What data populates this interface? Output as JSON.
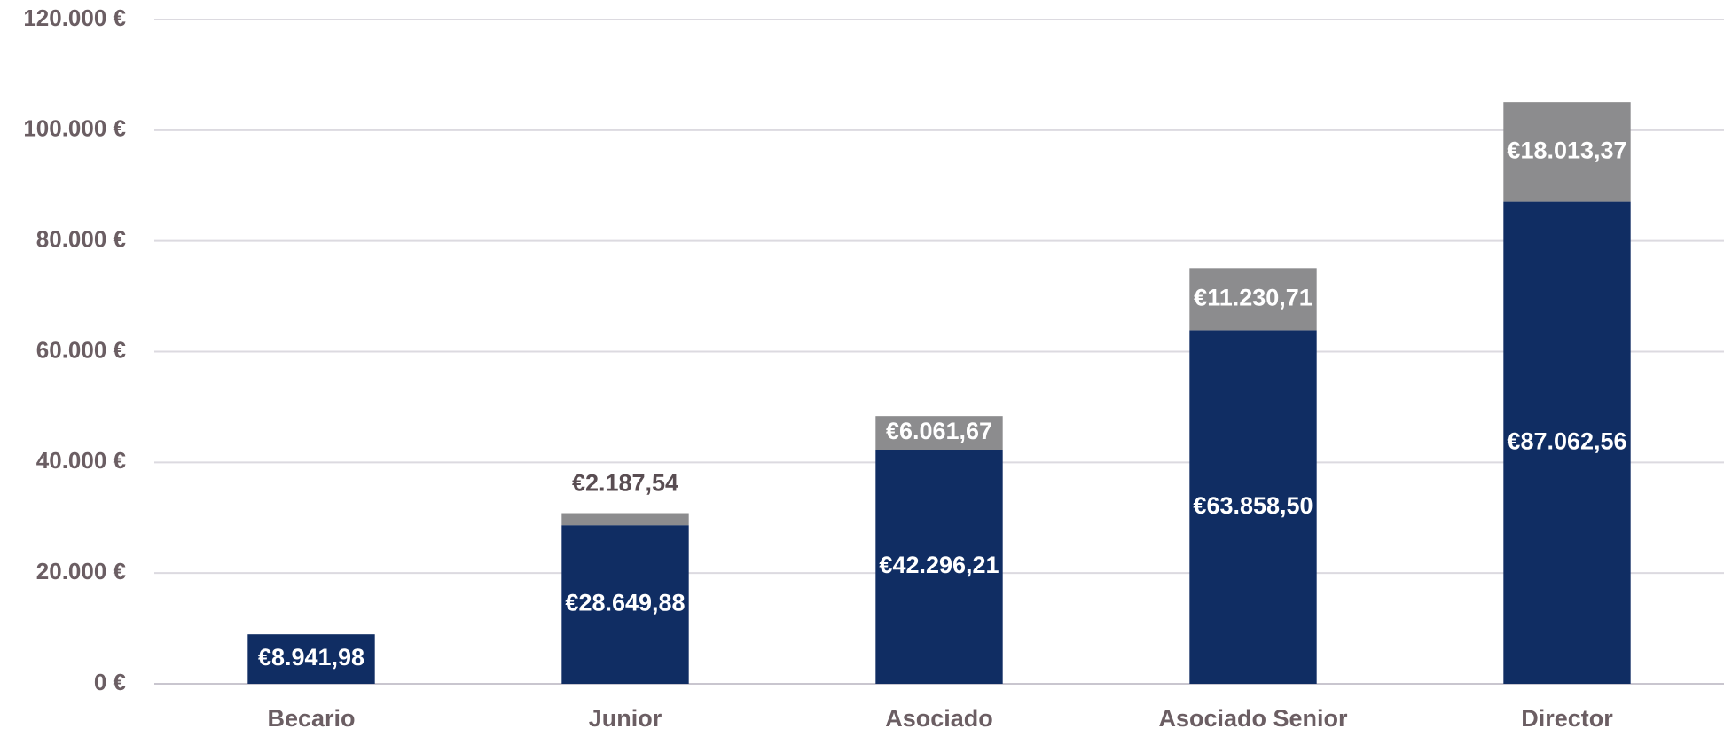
{
  "chart_data": {
    "type": "stacked_bar",
    "categories": [
      "Becario",
      "Junior",
      "Asociado",
      "Asociado Senior",
      "Director"
    ],
    "series": [
      {
        "color": "#102d63",
        "values": [
          8941.98,
          28649.88,
          42296.21,
          63858.5,
          87062.56
        ],
        "value_labels": [
          "€8.941,98",
          "€28.649,88",
          "€42.296,21",
          "€63.858,50",
          "€87.062,56"
        ]
      },
      {
        "color": "#8c8c8e",
        "values": [
          null,
          2187.54,
          6061.67,
          11230.71,
          18013.37
        ],
        "value_labels": [
          null,
          "€2.187,54",
          "€6.061,67",
          "€11.230,71",
          "€18.013,37"
        ]
      }
    ],
    "ylim": [
      0,
      120000
    ],
    "yticks": [
      {
        "value": 0,
        "label": "0 €"
      },
      {
        "value": 20000,
        "label": "20.000 €"
      },
      {
        "value": 40000,
        "label": "40.000 €"
      },
      {
        "value": 60000,
        "label": "60.000 €"
      },
      {
        "value": 80000,
        "label": "80.000 €"
      },
      {
        "value": 100000,
        "label": "100.000 €"
      },
      {
        "value": 120000,
        "label": "120.000 €"
      }
    ],
    "grid": true
  }
}
